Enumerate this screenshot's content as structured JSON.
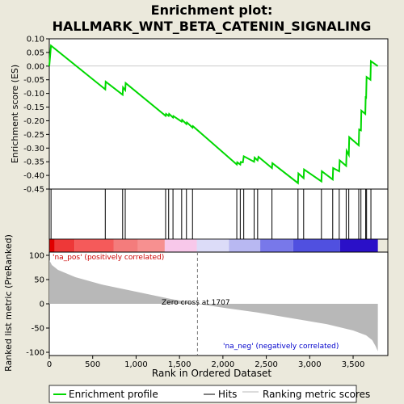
{
  "chart_data": {
    "type": "line",
    "title_line1": "Enrichment plot:",
    "title_line2": "HALLMARK_WNT_BETA_CATENIN_SIGNALING",
    "es_panel": {
      "ylabel": "Enrichment score (ES)",
      "ylim": [
        -0.45,
        0.1
      ],
      "yticks": [
        0.1,
        0.05,
        0.0,
        -0.05,
        -0.1,
        -0.15,
        -0.2,
        -0.25,
        -0.3,
        -0.35,
        -0.4,
        -0.45
      ],
      "ytick_labels": [
        "0.10",
        "0.05",
        "0.00",
        "-0.05",
        "-0.10",
        "-0.15",
        "-0.20",
        "-0.25",
        "-0.30",
        "-0.35",
        "-0.40",
        "-0.45"
      ],
      "series_color": "#00d800",
      "profile": [
        [
          0,
          0.0
        ],
        [
          20,
          0.075
        ],
        [
          645,
          -0.085
        ],
        [
          650,
          -0.057
        ],
        [
          845,
          -0.105
        ],
        [
          850,
          -0.078
        ],
        [
          875,
          -0.088
        ],
        [
          880,
          -0.062
        ],
        [
          1340,
          -0.182
        ],
        [
          1345,
          -0.175
        ],
        [
          1375,
          -0.182
        ],
        [
          1380,
          -0.175
        ],
        [
          1425,
          -0.188
        ],
        [
          1430,
          -0.183
        ],
        [
          1525,
          -0.203
        ],
        [
          1530,
          -0.197
        ],
        [
          1580,
          -0.212
        ],
        [
          1585,
          -0.206
        ],
        [
          1650,
          -0.225
        ],
        [
          1655,
          -0.22
        ],
        [
          2160,
          -0.36
        ],
        [
          2165,
          -0.352
        ],
        [
          2200,
          -0.36
        ],
        [
          2205,
          -0.351
        ],
        [
          2230,
          -0.352
        ],
        [
          2240,
          -0.33
        ],
        [
          2360,
          -0.35
        ],
        [
          2365,
          -0.335
        ],
        [
          2400,
          -0.345
        ],
        [
          2410,
          -0.332
        ],
        [
          2565,
          -0.373
        ],
        [
          2570,
          -0.355
        ],
        [
          2865,
          -0.428
        ],
        [
          2870,
          -0.393
        ],
        [
          2930,
          -0.41
        ],
        [
          2935,
          -0.378
        ],
        [
          3135,
          -0.422
        ],
        [
          3140,
          -0.385
        ],
        [
          3265,
          -0.415
        ],
        [
          3270,
          -0.373
        ],
        [
          3340,
          -0.385
        ],
        [
          3345,
          -0.345
        ],
        [
          3420,
          -0.365
        ],
        [
          3425,
          -0.31
        ],
        [
          3450,
          -0.325
        ],
        [
          3455,
          -0.26
        ],
        [
          3565,
          -0.29
        ],
        [
          3570,
          -0.232
        ],
        [
          3590,
          -0.235
        ],
        [
          3595,
          -0.163
        ],
        [
          3640,
          -0.175
        ],
        [
          3645,
          -0.11
        ],
        [
          3650,
          -0.12
        ],
        [
          3655,
          -0.04
        ],
        [
          3700,
          -0.05
        ],
        [
          3705,
          0.018
        ],
        [
          3785,
          0.0
        ]
      ]
    },
    "hits": [
      20,
      645,
      845,
      875,
      1340,
      1375,
      1425,
      1525,
      1580,
      1650,
      2160,
      2200,
      2240,
      2360,
      2400,
      2565,
      2865,
      2930,
      3135,
      3265,
      3340,
      3420,
      3450,
      3565,
      3590,
      3645,
      3655,
      3705
    ],
    "rank_panel": {
      "ylabel": "Ranked list metric (PreRanked)",
      "ylim": [
        -100,
        100
      ],
      "yticks": [
        100,
        50,
        0,
        -50,
        -100
      ],
      "ytick_labels": [
        "100",
        "50",
        "0",
        "-50",
        "-100"
      ],
      "metric_curve": [
        [
          0,
          90
        ],
        [
          30,
          80
        ],
        [
          100,
          70
        ],
        [
          300,
          55
        ],
        [
          600,
          40
        ],
        [
          1000,
          25
        ],
        [
          1400,
          10
        ],
        [
          1707,
          0
        ],
        [
          2000,
          -8
        ],
        [
          2400,
          -18
        ],
        [
          2800,
          -30
        ],
        [
          3200,
          -42
        ],
        [
          3500,
          -55
        ],
        [
          3650,
          -65
        ],
        [
          3720,
          -75
        ],
        [
          3760,
          -88
        ],
        [
          3785,
          -98
        ]
      ],
      "fill_color": "#b8b8b8",
      "zero_cross_x": 1707,
      "zero_cross_label": "Zero cross at 1707",
      "pos_label": "'na_pos' (positively correlated)",
      "pos_color": "#cc0000",
      "neg_label": "'na_neg' (negatively correlated)",
      "neg_color": "#0000cc"
    },
    "heat_segments": [
      [
        0,
        60,
        "#e00000"
      ],
      [
        60,
        290,
        "#ee3838"
      ],
      [
        290,
        740,
        "#f55a5a"
      ],
      [
        740,
        1020,
        "#f47c7c"
      ],
      [
        1020,
        1330,
        "#f79090"
      ],
      [
        1330,
        1700,
        "#f8c8ea"
      ],
      [
        1700,
        2070,
        "#dcdcf8"
      ],
      [
        2070,
        2430,
        "#b8b8f2"
      ],
      [
        2430,
        2810,
        "#7878ea"
      ],
      [
        2810,
        3350,
        "#5050e0"
      ],
      [
        3350,
        3785,
        "#2a10c8"
      ]
    ],
    "xlabel": "Rank in Ordered Dataset",
    "xlim": [
      0,
      3900
    ],
    "xticks": [
      0,
      500,
      1000,
      1500,
      2000,
      2500,
      3000,
      3500
    ],
    "xtick_labels": [
      "0",
      "500",
      "1,000",
      "1,500",
      "2,000",
      "2,500",
      "3,000",
      "3,500"
    ],
    "legend": [
      "Enrichment profile",
      "Hits",
      "Ranking metric scores"
    ],
    "legend_colors": [
      "#00d800",
      "#000000",
      "#b8b8b8"
    ]
  }
}
